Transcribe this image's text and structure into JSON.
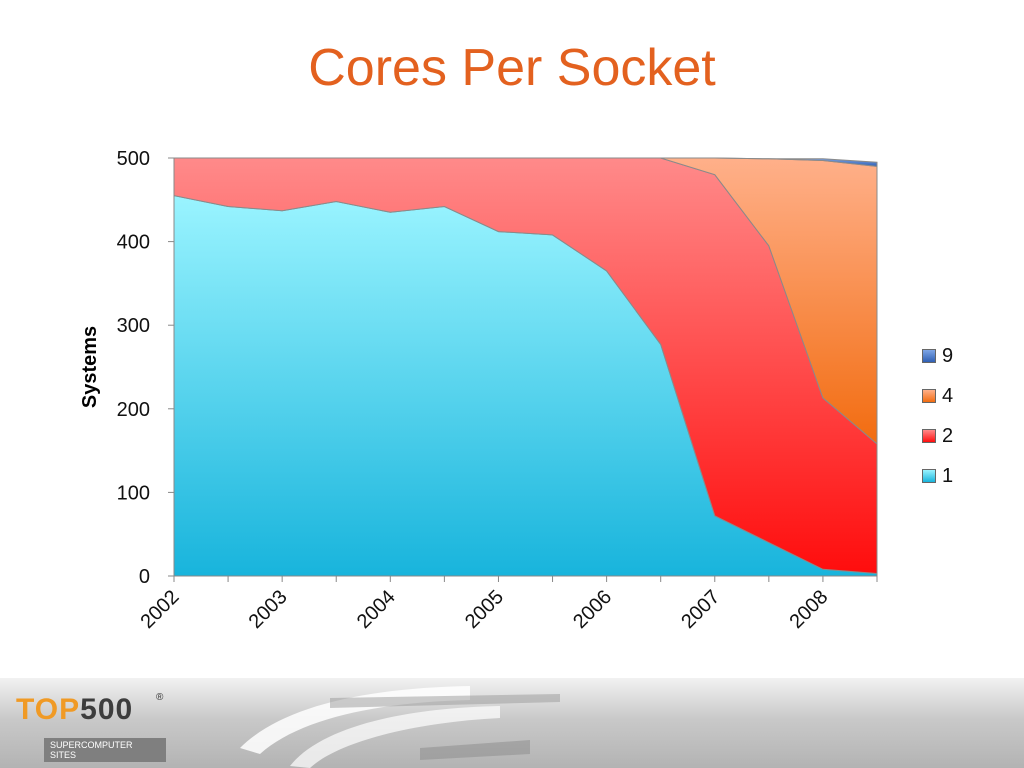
{
  "slide": {
    "title": "Cores Per Socket"
  },
  "footer": {
    "logo_top": "TOP",
    "logo_num": "500",
    "logo_reg": "®",
    "logo_subtitle": "SUPERCOMPUTER SITES"
  },
  "legend": [
    {
      "label": "9",
      "color": "#3f6fc4"
    },
    {
      "label": "4",
      "color": "#f58a4a"
    },
    {
      "label": "2",
      "color": "#ff3a3a"
    },
    {
      "label": "1",
      "color": "#36c6e6"
    }
  ],
  "chart_data": {
    "type": "area",
    "stacked": true,
    "title": "",
    "xlabel": "",
    "ylabel": "Systems",
    "ylim": [
      0,
      500
    ],
    "yticks": [
      0,
      100,
      200,
      300,
      400,
      500
    ],
    "xtick_labels": [
      "2002",
      "2003",
      "2004",
      "2005",
      "2006",
      "2007",
      "2008"
    ],
    "x": [
      2002.0,
      2002.5,
      2003.0,
      2003.5,
      2004.0,
      2004.5,
      2005.0,
      2005.5,
      2006.0,
      2006.5,
      2007.0,
      2007.5,
      2008.0,
      2008.5
    ],
    "grid": false,
    "legend_position": "right",
    "series": [
      {
        "name": "1",
        "color": "#36c6e6",
        "values": [
          455,
          442,
          437,
          448,
          435,
          442,
          412,
          408,
          365,
          277,
          72,
          40,
          8,
          3
        ]
      },
      {
        "name": "2",
        "color": "#ff3a3a",
        "values": [
          45,
          58,
          63,
          52,
          65,
          58,
          88,
          92,
          135,
          223,
          408,
          355,
          205,
          155
        ]
      },
      {
        "name": "4",
        "color": "#f58a4a",
        "values": [
          0,
          0,
          0,
          0,
          0,
          0,
          0,
          0,
          0,
          0,
          20,
          104,
          284,
          332
        ]
      },
      {
        "name": "9",
        "color": "#3f6fc4",
        "values": [
          0,
          0,
          0,
          0,
          0,
          0,
          0,
          0,
          0,
          0,
          0,
          0,
          2,
          5
        ]
      }
    ]
  }
}
